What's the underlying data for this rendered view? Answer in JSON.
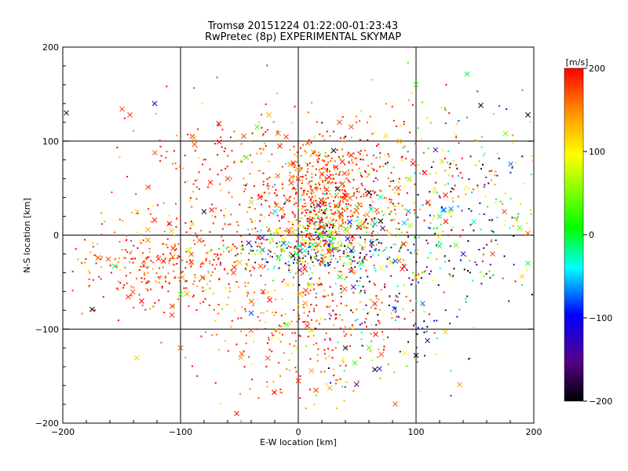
{
  "chart_data": {
    "type": "scatter",
    "title": "Tromsø 20151224 01:22:00-01:23:43",
    "subtitle": "RwPretec (8p) EXPERIMENTAL SKYMAP",
    "xlabel": "E-W location [km]",
    "ylabel": "N-S location [km]",
    "xlim": [
      -200,
      200
    ],
    "ylim": [
      -200,
      200
    ],
    "xticks": [
      -200,
      -100,
      0,
      100,
      200
    ],
    "yticks": [
      -200,
      -100,
      0,
      100,
      200
    ],
    "grid_lines": [
      -100,
      0,
      100
    ],
    "colorbar": {
      "unit_label": "[m/s]",
      "range": [
        -200,
        200
      ],
      "ticks": [
        200,
        100,
        0,
        -100,
        -200
      ],
      "color_stops": [
        "#000000",
        "#550088",
        "#0000ff",
        "#00ffff",
        "#00ff00",
        "#ffff00",
        "#ff9900",
        "#ff0000"
      ]
    },
    "clusters": [
      {
        "cx": 25,
        "cy": 45,
        "sx": 28,
        "sy": 30,
        "n": 450,
        "v_mean": 180,
        "v_sd": 30
      },
      {
        "cx": 20,
        "cy": 5,
        "sx": 28,
        "sy": 20,
        "n": 300,
        "v_mean": 100,
        "v_sd": 120
      },
      {
        "cx": 10,
        "cy": -20,
        "sx": 35,
        "sy": 10,
        "n": 180,
        "v_mean": -40,
        "v_sd": 120
      },
      {
        "cx": -120,
        "cy": -30,
        "sx": 35,
        "sy": 22,
        "n": 240,
        "v_mean": 180,
        "v_sd": 30
      },
      {
        "cx": 10,
        "cy": -90,
        "sx": 40,
        "sy": 40,
        "n": 320,
        "v_mean": 170,
        "v_sd": 45
      },
      {
        "cx": 110,
        "cy": 70,
        "sx": 45,
        "sy": 45,
        "n": 160,
        "v_mean": 150,
        "v_sd": 80
      },
      {
        "cx": 140,
        "cy": 40,
        "sx": 50,
        "sy": 60,
        "n": 140,
        "v_mean": -50,
        "v_sd": 130
      },
      {
        "cx": -60,
        "cy": 80,
        "sx": 45,
        "sy": 40,
        "n": 140,
        "v_mean": 180,
        "v_sd": 40
      },
      {
        "cx": 70,
        "cy": -60,
        "sx": 40,
        "sy": 50,
        "n": 140,
        "v_mean": -100,
        "v_sd": 110
      },
      {
        "cx": 100,
        "cy": -10,
        "sx": 60,
        "sy": 40,
        "n": 120,
        "v_mean": 0,
        "v_sd": 150
      },
      {
        "cx": -60,
        "cy": -10,
        "sx": 45,
        "sy": 60,
        "n": 140,
        "v_mean": 170,
        "v_sd": 60
      }
    ],
    "x_markers": [
      {
        "x": -143,
        "y": 128,
        "v": 180
      },
      {
        "x": -122,
        "y": 140,
        "v": -100
      },
      {
        "x": -197,
        "y": 130,
        "v": -200
      },
      {
        "x": -175,
        "y": -79,
        "v": -200
      },
      {
        "x": -156,
        "y": -33,
        "v": 0
      },
      {
        "x": -122,
        "y": 16,
        "v": 190
      },
      {
        "x": -90,
        "y": 105,
        "v": 190
      },
      {
        "x": -35,
        "y": 115,
        "v": 30
      },
      {
        "x": -25,
        "y": 128,
        "v": 130
      },
      {
        "x": 35,
        "y": 120,
        "v": 180
      },
      {
        "x": 100,
        "y": 160,
        "v": 30
      },
      {
        "x": 155,
        "y": 138,
        "v": -200
      },
      {
        "x": 176,
        "y": 108,
        "v": 40
      },
      {
        "x": 195,
        "y": 128,
        "v": -200
      },
      {
        "x": 188,
        "y": 8,
        "v": 40
      },
      {
        "x": 195,
        "y": -30,
        "v": 0
      },
      {
        "x": 190,
        "y": -44,
        "v": 120
      },
      {
        "x": 165,
        "y": -20,
        "v": 180
      },
      {
        "x": 120,
        "y": 20,
        "v": 0
      },
      {
        "x": 95,
        "y": 10,
        "v": 60
      },
      {
        "x": 85,
        "y": 50,
        "v": 180
      },
      {
        "x": 60,
        "y": 45,
        "v": -200
      },
      {
        "x": 30,
        "y": 90,
        "v": -200
      },
      {
        "x": -100,
        "y": -63,
        "v": 40
      },
      {
        "x": -55,
        "y": -40,
        "v": 180
      },
      {
        "x": -30,
        "y": -60,
        "v": 180
      },
      {
        "x": -40,
        "y": -83,
        "v": -80
      },
      {
        "x": -10,
        "y": -95,
        "v": 40
      },
      {
        "x": 40,
        "y": -120,
        "v": -200
      },
      {
        "x": 60,
        "y": -120,
        "v": 30
      },
      {
        "x": 100,
        "y": -128,
        "v": -200
      },
      {
        "x": 125,
        "y": -103,
        "v": 120
      },
      {
        "x": 65,
        "y": -143,
        "v": -200
      },
      {
        "x": -100,
        "y": -120,
        "v": 180
      },
      {
        "x": 0,
        "y": -155,
        "v": 180
      },
      {
        "x": 15,
        "y": -165,
        "v": 180
      },
      {
        "x": 50,
        "y": 30,
        "v": 0
      },
      {
        "x": 70,
        "y": 15,
        "v": -200
      },
      {
        "x": 110,
        "y": 35,
        "v": 180
      },
      {
        "x": -60,
        "y": 60,
        "v": 180
      },
      {
        "x": -80,
        "y": 25,
        "v": -200
      },
      {
        "x": -90,
        "y": 12,
        "v": 120
      },
      {
        "x": 140,
        "y": -20,
        "v": -120
      },
      {
        "x": 175,
        "y": 25,
        "v": 180
      },
      {
        "x": -40,
        "y": 35,
        "v": 60
      },
      {
        "x": 0,
        "y": 60,
        "v": 180
      },
      {
        "x": 20,
        "y": 65,
        "v": 180
      },
      {
        "x": 45,
        "y": 85,
        "v": 180
      }
    ]
  }
}
